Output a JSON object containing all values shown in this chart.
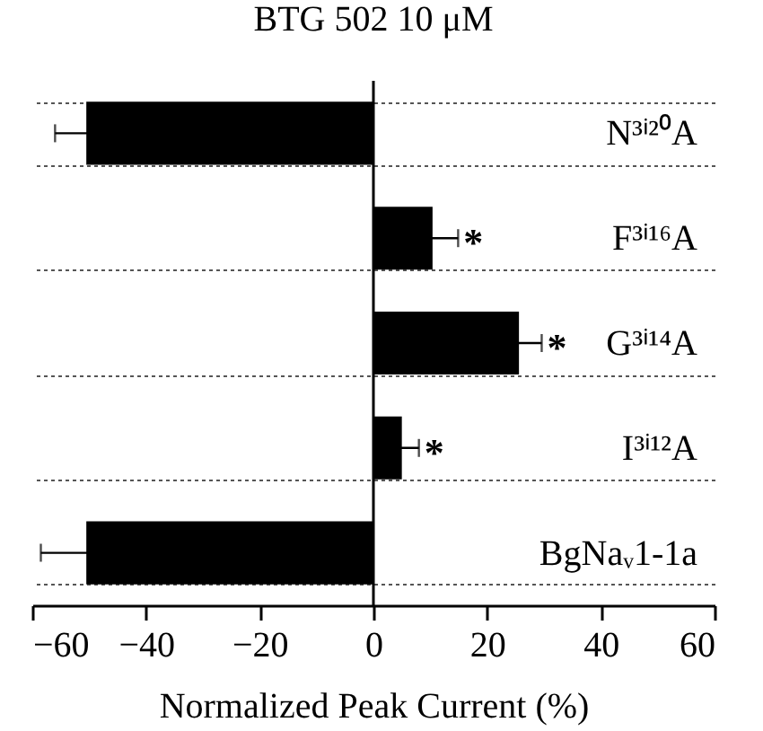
{
  "chart_data": {
    "type": "bar",
    "orientation": "horizontal",
    "title": "BTG 502 10 μM",
    "xlabel": "Normalized Peak Current (%)",
    "categories": [
      "N³ⁱ²⁰A",
      "F³ⁱ¹⁶A",
      "G³ⁱ¹⁴A",
      "I³ⁱ¹²A",
      "BgNaᵥ1-1a"
    ],
    "values": [
      -50.5,
      10.4,
      25.6,
      5,
      -50.5
    ],
    "errors": [
      5.5,
      4.5,
      4,
      3,
      8
    ],
    "color": "#000000",
    "xlim": [
      -60,
      60
    ],
    "xticks": [
      -60,
      -40,
      -20,
      0,
      20,
      40,
      60
    ],
    "grid": "y",
    "ref_lines": [
      {
        "axis": "x",
        "value": 0
      }
    ],
    "annotations": [
      {
        "text": "*",
        "x": 10.4,
        "y": "F³ⁱ¹⁶A"
      },
      {
        "text": "*",
        "x": 25.6,
        "y": "G³ⁱ¹⁴A"
      },
      {
        "text": "*",
        "x": 5,
        "y": "I³ⁱ¹²A"
      }
    ]
  }
}
